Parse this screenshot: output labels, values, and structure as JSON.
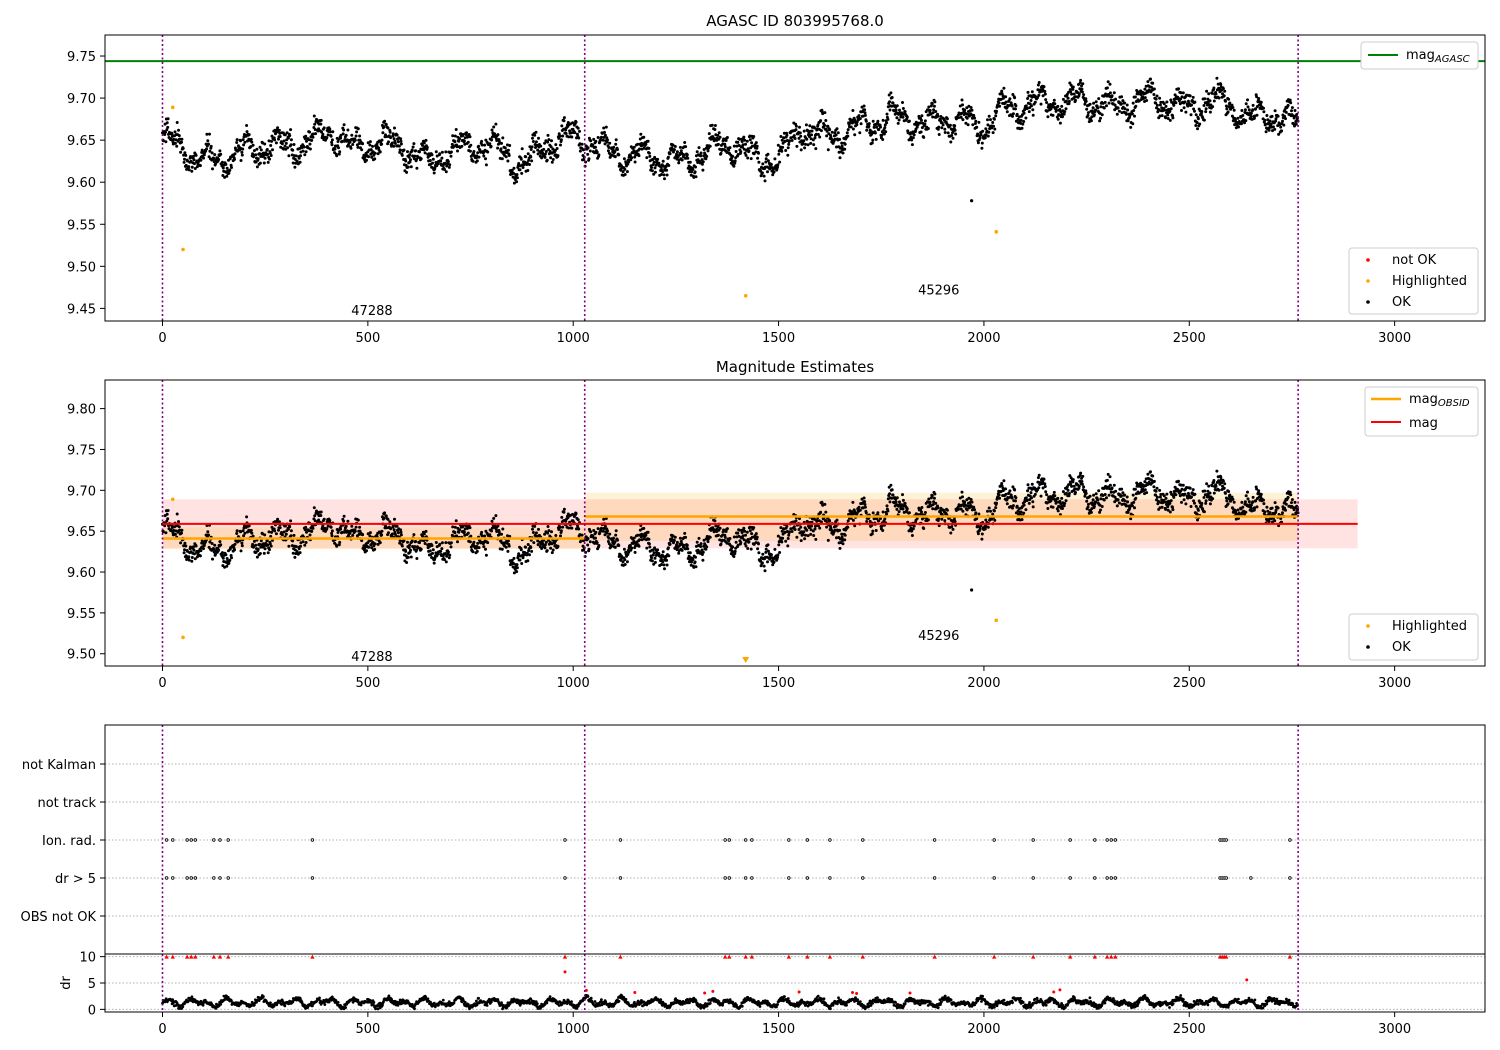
{
  "chart_data": [
    {
      "type": "scatter",
      "title": "AGASC ID 803995768.0",
      "xlim": [
        -140,
        3220
      ],
      "ylim": [
        9.435,
        9.775
      ],
      "xticks": [
        0,
        500,
        1000,
        1500,
        2000,
        2500,
        3000
      ],
      "yticks": [
        9.45,
        9.5,
        9.55,
        9.6,
        9.65,
        9.7,
        9.75
      ],
      "mag_agasc": 9.744,
      "obsid_boundaries": [
        0,
        1028,
        2765
      ],
      "obsid_labels": [
        {
          "text": "47288",
          "x": 510,
          "y": 9.447
        },
        {
          "text": "45296",
          "x": 1890,
          "y": 9.471
        }
      ],
      "ok_trend": {
        "x": [
          0,
          50,
          100,
          160,
          220,
          280,
          340,
          400,
          460,
          520,
          580,
          640,
          700,
          760,
          820,
          880,
          940,
          1000,
          1028,
          1080,
          1140,
          1200,
          1260,
          1320,
          1380,
          1440,
          1500,
          1550,
          1600,
          1650,
          1700,
          1750,
          1800,
          1850,
          1900,
          1950,
          2000,
          2050,
          2100,
          2150,
          2200,
          2250,
          2300,
          2350,
          2400,
          2450,
          2500,
          2550,
          2600,
          2650,
          2700,
          2765
        ],
        "y": [
          9.652,
          9.64,
          9.626,
          9.63,
          9.64,
          9.645,
          9.64,
          9.665,
          9.64,
          9.648,
          9.645,
          9.625,
          9.635,
          9.648,
          9.64,
          9.62,
          9.645,
          9.655,
          9.65,
          9.638,
          9.632,
          9.628,
          9.624,
          9.635,
          9.648,
          9.63,
          9.625,
          9.665,
          9.655,
          9.655,
          9.668,
          9.672,
          9.68,
          9.665,
          9.675,
          9.672,
          9.665,
          9.688,
          9.69,
          9.694,
          9.695,
          9.698,
          9.692,
          9.69,
          9.7,
          9.695,
          9.685,
          9.7,
          9.69,
          9.678,
          9.68,
          9.67
        ],
        "spread": 0.017
      },
      "highlighted": [
        {
          "x": 25,
          "y": 9.689
        },
        {
          "x": 50,
          "y": 9.52
        },
        {
          "x": 1420,
          "y": 9.465
        },
        {
          "x": 2030,
          "y": 9.541
        }
      ],
      "ok_outliers": [
        {
          "x": 1970,
          "y": 9.578
        }
      ],
      "legend_upper": [
        {
          "label": "mag",
          "sub": "AGASC",
          "color": "#008000"
        }
      ],
      "legend_lower": [
        {
          "label": "not OK",
          "color": "#ff0000"
        },
        {
          "label": "Highlighted",
          "color": "#ffa500"
        },
        {
          "label": "OK",
          "color": "#000000"
        }
      ]
    },
    {
      "type": "scatter",
      "title": "Magnitude Estimates",
      "xlim": [
        -140,
        3220
      ],
      "ylim": [
        9.485,
        9.835
      ],
      "xticks": [
        0,
        500,
        1000,
        1500,
        2000,
        2500,
        3000
      ],
      "yticks": [
        9.5,
        9.55,
        9.6,
        9.65,
        9.7,
        9.75,
        9.8
      ],
      "mag": {
        "value": 9.659,
        "low": 9.629,
        "high": 9.689,
        "x_range": [
          0,
          2910
        ]
      },
      "mag_obsid": [
        {
          "x": [
            0,
            1028
          ],
          "value": 9.641,
          "low": 9.628,
          "high": 9.655
        },
        {
          "x": [
            1028,
            2765
          ],
          "value": 9.668,
          "low": 9.638,
          "high": 9.697
        }
      ],
      "obsid_labels": [
        {
          "text": "47288",
          "x": 510,
          "y": 9.496
        },
        {
          "text": "45296",
          "x": 1890,
          "y": 9.522
        }
      ],
      "highlighted": [
        {
          "x": 25,
          "y": 9.689
        },
        {
          "x": 50,
          "y": 9.52
        },
        {
          "x": 2030,
          "y": 9.541
        }
      ],
      "highlighted_offscale": [
        {
          "x": 1420,
          "marker": "down-triangle"
        }
      ],
      "legend_upper": [
        {
          "label": "mag",
          "sub": "OBSID",
          "color": "#ffa500"
        },
        {
          "label": "mag",
          "sub": "",
          "color": "#ff0000"
        }
      ],
      "legend_lower": [
        {
          "label": "Highlighted",
          "color": "#ffa500"
        },
        {
          "label": "OK",
          "color": "#000000"
        }
      ]
    },
    {
      "type": "scatter",
      "title": "",
      "xlim": [
        -140,
        3220
      ],
      "flag_rows": [
        "not Kalman",
        "not track",
        "Ion. rad.",
        "dr > 5",
        "OBS not OK"
      ],
      "flag_points": {
        "Ion. rad.": [
          10,
          25,
          60,
          70,
          80,
          125,
          140,
          160,
          365,
          980,
          1115,
          1370,
          1380,
          1420,
          1435,
          1525,
          1570,
          1625,
          1705,
          1880,
          2025,
          2120,
          2210,
          2270,
          2300,
          2310,
          2320,
          2575,
          2580,
          2585,
          2590,
          2745
        ],
        "dr > 5": [
          10,
          25,
          60,
          70,
          80,
          125,
          140,
          160,
          365,
          980,
          1115,
          1370,
          1380,
          1420,
          1435,
          1525,
          1570,
          1625,
          1705,
          1880,
          2025,
          2120,
          2210,
          2270,
          2300,
          2310,
          2320,
          2575,
          2580,
          2585,
          2590,
          2650,
          2745
        ]
      }
    },
    {
      "type": "scatter",
      "title": "",
      "ylabel": "dr",
      "xlim": [
        -140,
        3220
      ],
      "ylim": [
        -0.5,
        10.5
      ],
      "xticks": [
        0,
        500,
        1000,
        1500,
        2000,
        2500,
        3000
      ],
      "yticks": [
        0,
        5,
        10
      ],
      "dr_clipped_at": 10,
      "dr_clipped_x": [
        10,
        25,
        60,
        70,
        80,
        125,
        140,
        160,
        365,
        980,
        1115,
        1370,
        1380,
        1420,
        1435,
        1525,
        1570,
        1625,
        1705,
        1880,
        2025,
        2120,
        2210,
        2270,
        2300,
        2310,
        2320,
        2575,
        2580,
        2585,
        2590,
        2745
      ],
      "dr_red": [
        {
          "x": 980,
          "y": 7.1
        },
        {
          "x": 1032,
          "y": 3.6
        },
        {
          "x": 1150,
          "y": 3.2
        },
        {
          "x": 1320,
          "y": 3.1
        },
        {
          "x": 1340,
          "y": 3.4
        },
        {
          "x": 1550,
          "y": 3.3
        },
        {
          "x": 1680,
          "y": 3.2
        },
        {
          "x": 1690,
          "y": 3.0
        },
        {
          "x": 1820,
          "y": 3.1
        },
        {
          "x": 2170,
          "y": 3.3
        },
        {
          "x": 2185,
          "y": 3.7
        },
        {
          "x": 2640,
          "y": 5.6
        }
      ]
    }
  ]
}
